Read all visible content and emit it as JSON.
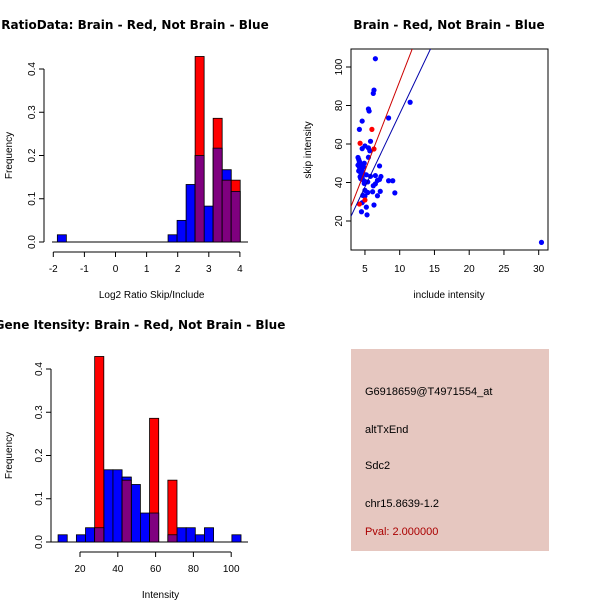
{
  "colors": {
    "brain": "#ff0000",
    "not_brain": "#0000ff",
    "overlap": "#7f007f",
    "pval_text": "#aa0000",
    "panel_bg": "#e6c7c0"
  },
  "chart_data": [
    {
      "id": "ratio-hist",
      "type": "bar",
      "title": "RatioData: Brain - Red, Not Brain - Blue",
      "xlabel": "Log2 Ratio Skip/Include",
      "ylabel": "Frequency",
      "xlim": [
        -2,
        4
      ],
      "ylim": [
        0,
        0.4
      ],
      "xticks": [
        "-2",
        "-1",
        "0",
        "1",
        "2",
        "3",
        "4"
      ],
      "yticks": [
        "0.0",
        "0.1",
        "0.2",
        "0.3",
        "0.4"
      ],
      "bin_width": 0.29,
      "series": [
        {
          "name": "Not Brain",
          "color": "blue",
          "bins": [
            {
              "x0": -1.87,
              "value": 0.0167
            },
            {
              "x0": 1.69,
              "value": 0.0167
            },
            {
              "x0": 1.98,
              "value": 0.05
            },
            {
              "x0": 2.27,
              "value": 0.133
            },
            {
              "x0": 2.56,
              "value": 0.2
            },
            {
              "x0": 2.85,
              "value": 0.083
            },
            {
              "x0": 3.14,
              "value": 0.217
            },
            {
              "x0": 3.43,
              "value": 0.167
            },
            {
              "x0": 3.72,
              "value": 0.117
            }
          ]
        },
        {
          "name": "Brain",
          "color": "red",
          "bins": [
            {
              "x0": 2.56,
              "value": 0.429
            },
            {
              "x0": 3.14,
              "value": 0.286
            },
            {
              "x0": 3.43,
              "value": 0.143
            },
            {
              "x0": 3.72,
              "value": 0.143
            }
          ]
        }
      ]
    },
    {
      "id": "intensity-scatter",
      "type": "scatter",
      "title": "Brain - Red, Not Brain - Blue",
      "xlabel": "include intensity",
      "ylabel": "skip intensity",
      "xlim": [
        3,
        31.5
      ],
      "ylim": [
        5,
        109.4
      ],
      "xticks": [
        "5",
        "10",
        "15",
        "20",
        "25",
        "30"
      ],
      "yticks": [
        "20",
        "40",
        "60",
        "80",
        "100"
      ],
      "lines": [
        {
          "name": "Brain fit",
          "color": "red",
          "slope": 9.3,
          "intercept": -0.4
        },
        {
          "name": "Not Brain fit",
          "color": "blue",
          "slope": 7.6,
          "intercept": -0.3
        }
      ],
      "series": [
        {
          "name": "Not Brain",
          "color": "blue",
          "points": [
            [
              6.5,
              104.3
            ],
            [
              6.3,
              88
            ],
            [
              6.2,
              86.3
            ],
            [
              5.5,
              78.2
            ],
            [
              5.6,
              77.1
            ],
            [
              4.6,
              71.9
            ],
            [
              4.2,
              67.6
            ],
            [
              8.4,
              73.5
            ],
            [
              11.5,
              81.7
            ],
            [
              5.8,
              61.4
            ],
            [
              5.0,
              59
            ],
            [
              4.6,
              57.6
            ],
            [
              5.5,
              58.0
            ],
            [
              5.7,
              56.5
            ],
            [
              5.5,
              53.1
            ],
            [
              4.0,
              53
            ],
            [
              4.1,
              52
            ],
            [
              4.2,
              51
            ],
            [
              4.3,
              50
            ],
            [
              4.0,
              49
            ],
            [
              4.4,
              49
            ],
            [
              4.2,
              48
            ],
            [
              4.5,
              47.5
            ],
            [
              4.3,
              47
            ],
            [
              4.6,
              46
            ],
            [
              4.4,
              45
            ],
            [
              4.7,
              45
            ],
            [
              4.5,
              44
            ],
            [
              4.8,
              48
            ],
            [
              4.9,
              50
            ],
            [
              4.3,
              43
            ],
            [
              4.6,
              42.5
            ],
            [
              4.4,
              42
            ],
            [
              4.8,
              41
            ],
            [
              5.0,
              40.5
            ],
            [
              4.9,
              39.5
            ],
            [
              5.2,
              44
            ],
            [
              4.1,
              46
            ],
            [
              4.7,
              49.5
            ],
            [
              4.2,
              50.5
            ],
            [
              7.1,
              48.6
            ],
            [
              7.3,
              43.1
            ],
            [
              7.1,
              41.6
            ],
            [
              6.8,
              41.1
            ],
            [
              6.5,
              43.6
            ],
            [
              5.8,
              43.2
            ],
            [
              8.4,
              40.9
            ],
            [
              9.0,
              40.9
            ],
            [
              6.5,
              39.3
            ],
            [
              6.2,
              38.3
            ],
            [
              5.4,
              40.3
            ],
            [
              7.2,
              35.4
            ],
            [
              6.1,
              35.2
            ],
            [
              5.4,
              34.8
            ],
            [
              9.3,
              34.6
            ],
            [
              6.8,
              33.1
            ],
            [
              5.0,
              35.9
            ],
            [
              5.0,
              33.0
            ],
            [
              4.7,
              33.3
            ],
            [
              6.3,
              28.3
            ],
            [
              4.6,
              29.5
            ],
            [
              5.2,
              27.2
            ],
            [
              4.5,
              24.8
            ],
            [
              5.3,
              23.2
            ],
            [
              30.4,
              8.9
            ]
          ]
        },
        {
          "name": "Brain",
          "color": "red",
          "points": [
            [
              6.0,
              67.6
            ],
            [
              4.3,
              60.4
            ],
            [
              6.3,
              57.4
            ],
            [
              5.0,
              30.9
            ],
            [
              4.2,
              28.8
            ]
          ]
        }
      ]
    },
    {
      "id": "gene-hist",
      "type": "bar",
      "title": "Gene Itensity: Brain - Red, Not Brain - Blue",
      "xlabel": "Intensity",
      "ylabel": "Frequency",
      "xlim": [
        20,
        100
      ],
      "ylim": [
        0,
        0.4
      ],
      "xticks": [
        "20",
        "40",
        "60",
        "80",
        "100"
      ],
      "yticks": [
        "0.0",
        "0.1",
        "0.2",
        "0.3",
        "0.4"
      ],
      "bin_start": 8.4,
      "bin_width": 4.84,
      "series": [
        {
          "name": "Not Brain",
          "color": "blue",
          "values": [
            0.0167,
            0,
            0.0167,
            0.033,
            0.033,
            0.167,
            0.167,
            0.15,
            0.133,
            0.067,
            0.067,
            0,
            0.0167,
            0.033,
            0.033,
            0.0167,
            0.033,
            0,
            0,
            0.0167
          ]
        },
        {
          "name": "Brain",
          "color": "red",
          "values": [
            0,
            0,
            0,
            0,
            0.429,
            0,
            0,
            0.143,
            0,
            0,
            0.286,
            0,
            0.143,
            0,
            0,
            0,
            0,
            0,
            0,
            0
          ]
        }
      ]
    }
  ],
  "info_panel": {
    "probe_id": "G6918659@T4971554_at",
    "event_type": "altTxEnd",
    "gene": "Sdc2",
    "location": "chr15.8639-1.2",
    "pval": "Pval: 2.000000"
  }
}
